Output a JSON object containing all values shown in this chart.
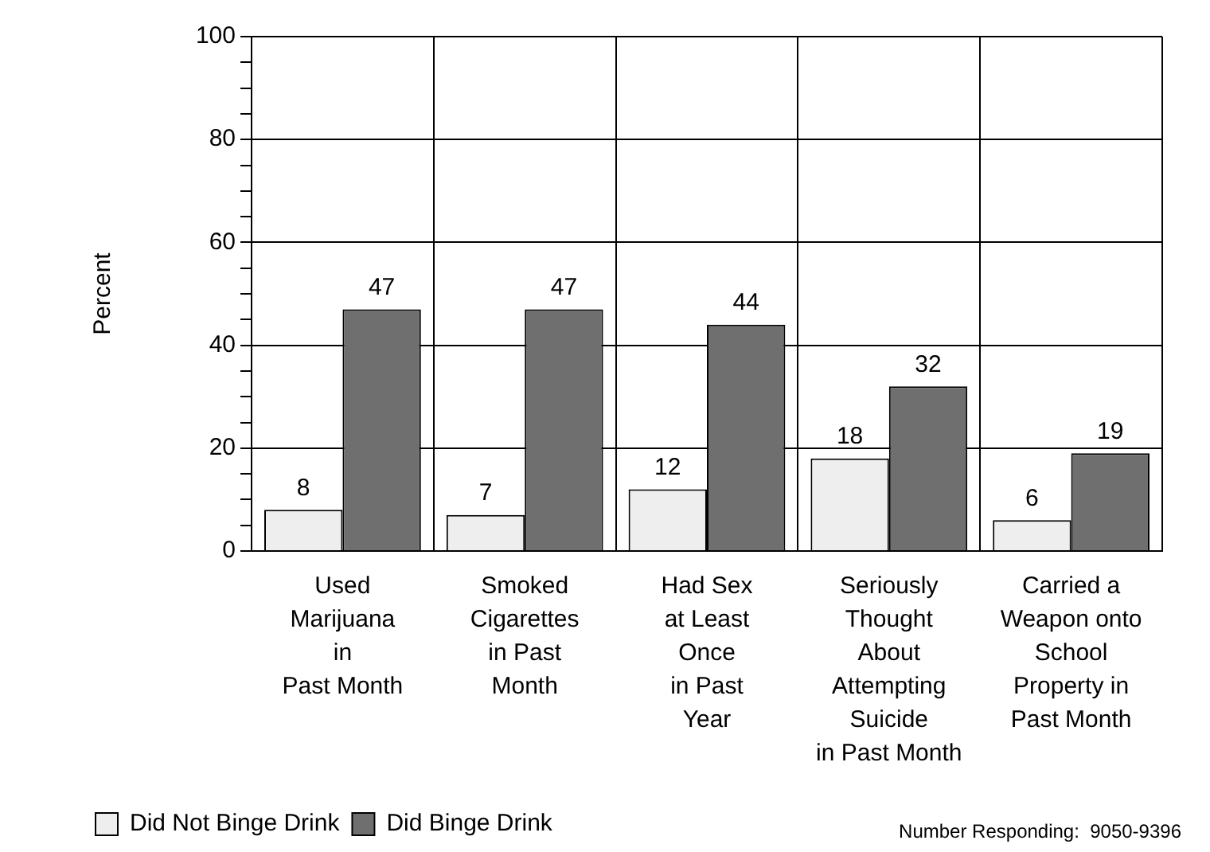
{
  "chart_data": {
    "type": "bar",
    "ylabel": "Percent",
    "categories": [
      "Used\nMarijuana\nin\nPast Month",
      "Smoked\nCigarettes\nin Past\nMonth",
      "Had Sex\nat Least\nOnce\nin Past\nYear",
      "Seriously\nThought\nAbout\nAttempting\nSuicide\nin Past Month",
      "Carried a\nWeapon onto\nSchool\nProperty in\nPast Month"
    ],
    "series": [
      {
        "name": "Did Not Binge Drink",
        "color": "#eeeeee",
        "values": [
          8,
          7,
          12,
          18,
          6
        ]
      },
      {
        "name": "Did Binge Drink",
        "color": "#6f6f6f",
        "values": [
          47,
          47,
          44,
          32,
          19
        ]
      }
    ],
    "ylim": [
      0,
      100
    ],
    "yticks": [
      0,
      {
        "value": 5,
        "label": null
      },
      {
        "value": 10,
        "label": null
      },
      {
        "value": 15,
        "label": null
      },
      20,
      {
        "value": 25,
        "label": null
      },
      {
        "value": 30,
        "label": null
      },
      {
        "value": 35,
        "label": null
      },
      40,
      {
        "value": 45,
        "label": null
      },
      {
        "value": 50,
        "label": null
      },
      {
        "value": 55,
        "label": null
      },
      60,
      {
        "value": 65,
        "label": null
      },
      {
        "value": 70,
        "label": null
      },
      {
        "value": 75,
        "label": null
      },
      80,
      {
        "value": 85,
        "label": null
      },
      {
        "value": 90,
        "label": null
      },
      {
        "value": 95,
        "label": null
      },
      100
    ],
    "grid": true,
    "legend": "bottom left",
    "data_labels": true,
    "annotations": [
      "Number Responding:  9050-9396"
    ]
  }
}
